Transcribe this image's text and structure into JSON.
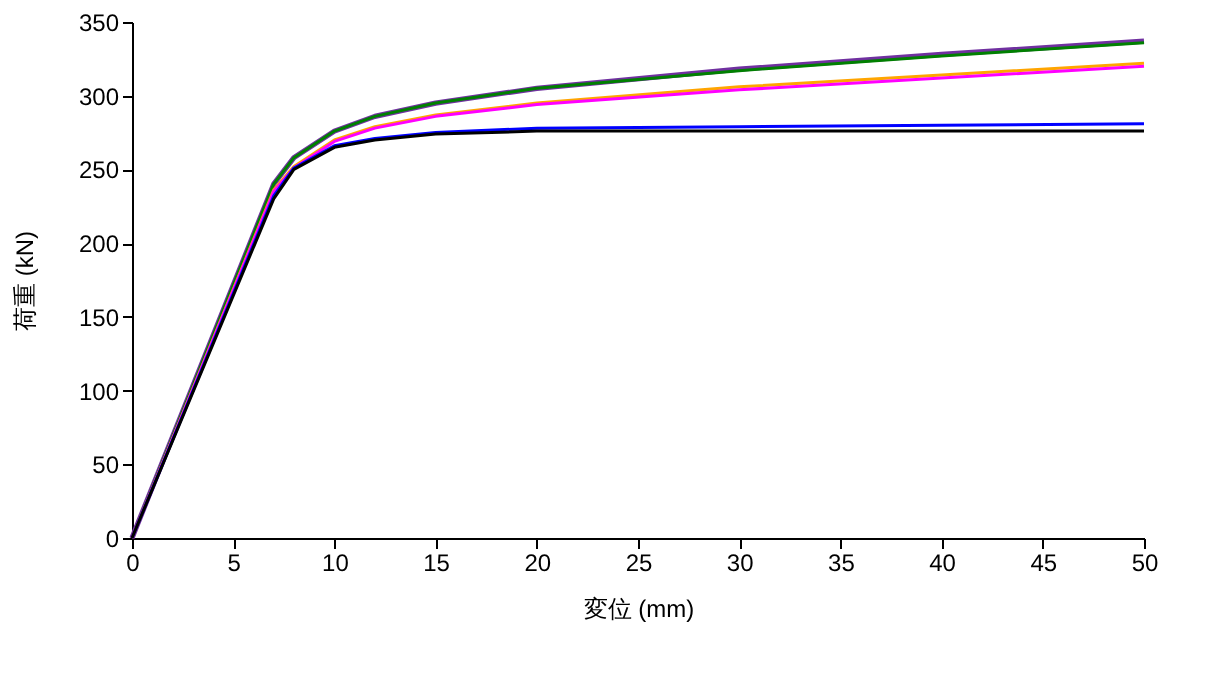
{
  "chart_data": {
    "type": "line",
    "xlabel": "変位 (mm)",
    "ylabel": "荷重 (kN)",
    "xlim": [
      0,
      50
    ],
    "ylim": [
      0,
      350
    ],
    "xticks": [
      0,
      5,
      10,
      15,
      20,
      25,
      30,
      35,
      40,
      45,
      50
    ],
    "yticks": [
      0,
      50,
      100,
      150,
      200,
      250,
      300,
      350
    ],
    "grid": false,
    "marker": "none",
    "line_style": "solid",
    "x": [
      0,
      7,
      8,
      10,
      12,
      15,
      20,
      30,
      40,
      50
    ],
    "series": [
      {
        "color": "#7030a0",
        "values": [
          0,
          240,
          258,
          276,
          286,
          295,
          305,
          318,
          328,
          337
        ]
      },
      {
        "color": "#008000",
        "values": [
          0,
          240,
          258,
          276,
          286,
          295,
          305,
          317,
          327,
          336
        ]
      },
      {
        "color": "#ffa500",
        "values": [
          0,
          236,
          252,
          270,
          279,
          287,
          295,
          306,
          314,
          322
        ]
      },
      {
        "color": "#ff00ff",
        "values": [
          0,
          235,
          251,
          269,
          278,
          286,
          294,
          304,
          312,
          320
        ]
      },
      {
        "color": "#0000ff",
        "values": [
          0,
          232,
          251,
          266,
          271,
          275,
          278,
          279,
          280,
          281
        ]
      },
      {
        "color": "#000000",
        "values": [
          0,
          230,
          250,
          265,
          270,
          274,
          276,
          276,
          276,
          276
        ]
      }
    ]
  }
}
